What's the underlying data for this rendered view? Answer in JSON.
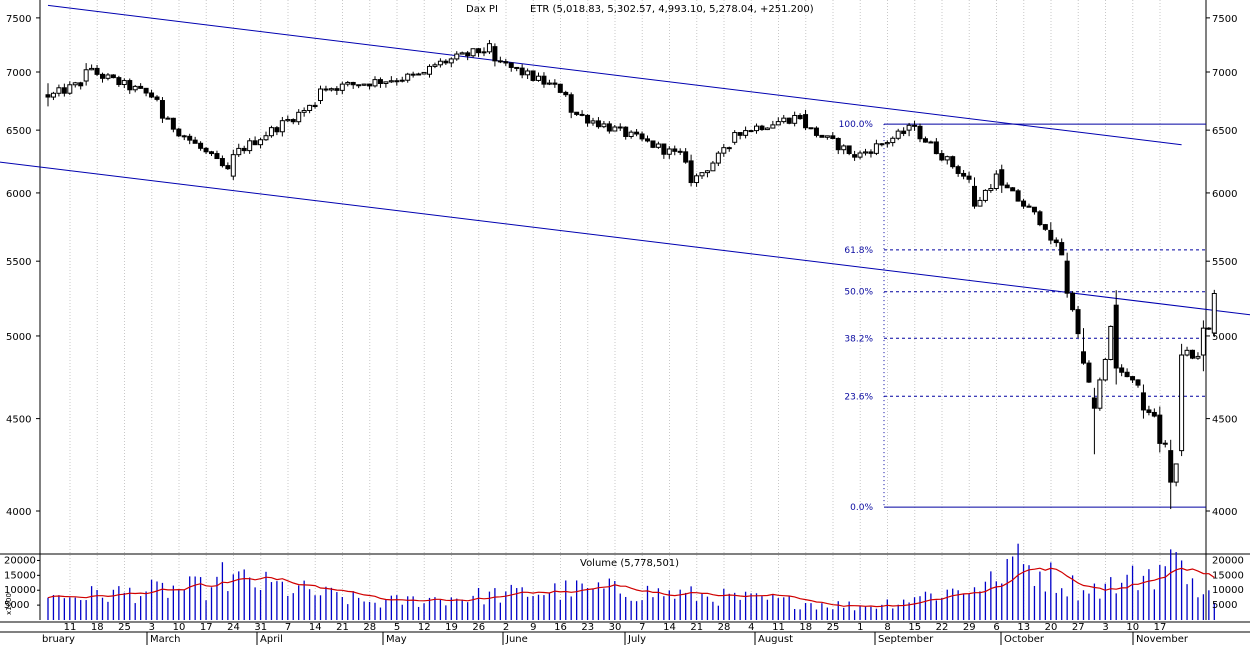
{
  "chart_data": [
    {
      "type": "candlestick",
      "symbol": "Dax PI",
      "header": "ETR (5,018.83, 5,302.57, 4,993.10, 5,278.04, +251.200)",
      "yticks": [
        4000,
        4500,
        5000,
        5500,
        6000,
        6500,
        7000,
        7500
      ],
      "ylim": [
        3650,
        7620
      ],
      "y_scale": "log",
      "date_ticks": [
        "11",
        "18",
        "25",
        "3",
        "10",
        "17",
        "24",
        "31",
        "7",
        "14",
        "21",
        "28",
        "5",
        "12",
        "19",
        "26",
        "2",
        "9",
        "16",
        "23",
        "30",
        "7",
        "14",
        "21",
        "28",
        "4",
        "11",
        "18",
        "25",
        "1",
        "8",
        "15",
        "22",
        "29",
        "6",
        "13",
        "20",
        "27",
        "3",
        "10",
        "17"
      ],
      "months": [
        "bruary",
        "March",
        "April",
        "May",
        "June",
        "July",
        "August",
        "September",
        "October",
        "November"
      ],
      "trendlines": [
        {
          "from": [
            0,
            7620
          ],
          "to": [
            208,
            6380
          ]
        },
        {
          "from": [
            -20,
            6300
          ],
          "to": [
            243,
            5040
          ]
        }
      ],
      "fibonacci": {
        "high": 6550,
        "low": 4020,
        "levels": [
          {
            "label": "100.0%",
            "value": 6550
          },
          {
            "label": "61.8%",
            "value": 5580
          },
          {
            "label": "50.0%",
            "value": 5290
          },
          {
            "label": "38.2%",
            "value": 4985
          },
          {
            "label": "23.6%",
            "value": 4630
          },
          {
            "label": "0.0%",
            "value": 4020
          }
        ]
      },
      "key_ohlc": [
        {
          "day": 0,
          "o": 6800,
          "h": 6900,
          "l": 6700,
          "c": 6780
        },
        {
          "day": 7,
          "o": 6920,
          "h": 7080,
          "l": 6880,
          "c": 7020
        },
        {
          "day": 21,
          "o": 6750,
          "h": 6780,
          "l": 6560,
          "c": 6600
        },
        {
          "day": 34,
          "o": 6130,
          "h": 6340,
          "l": 6100,
          "c": 6300
        },
        {
          "day": 50,
          "o": 6750,
          "h": 6880,
          "l": 6720,
          "c": 6850
        },
        {
          "day": 70,
          "o": 6980,
          "h": 7070,
          "l": 6950,
          "c": 7050
        },
        {
          "day": 82,
          "o": 7230,
          "h": 7260,
          "l": 7050,
          "c": 7100
        },
        {
          "day": 96,
          "o": 6800,
          "h": 6820,
          "l": 6600,
          "c": 6650
        },
        {
          "day": 118,
          "o": 6250,
          "h": 6300,
          "l": 6050,
          "c": 6080
        },
        {
          "day": 126,
          "o": 6400,
          "h": 6500,
          "l": 6380,
          "c": 6480
        },
        {
          "day": 139,
          "o": 6630,
          "h": 6670,
          "l": 6500,
          "c": 6520
        },
        {
          "day": 148,
          "o": 6300,
          "h": 6330,
          "l": 6250,
          "c": 6280
        },
        {
          "day": 158,
          "o": 6500,
          "h": 6560,
          "l": 6450,
          "c": 6540
        },
        {
          "day": 170,
          "o": 6050,
          "h": 6120,
          "l": 5880,
          "c": 5900
        },
        {
          "day": 175,
          "o": 6180,
          "h": 6220,
          "l": 6000,
          "c": 6060
        },
        {
          "day": 184,
          "o": 5720,
          "h": 5780,
          "l": 5620,
          "c": 5650
        },
        {
          "day": 187,
          "o": 5500,
          "h": 5560,
          "l": 5250,
          "c": 5280
        },
        {
          "day": 190,
          "o": 4900,
          "h": 5050,
          "l": 4820,
          "c": 4830
        },
        {
          "day": 192,
          "o": 4620,
          "h": 4680,
          "l": 4300,
          "c": 4560
        },
        {
          "day": 196,
          "o": 5200,
          "h": 5300,
          "l": 4700,
          "c": 4800
        },
        {
          "day": 201,
          "o": 4650,
          "h": 4700,
          "l": 4500,
          "c": 4550
        },
        {
          "day": 204,
          "o": 4520,
          "h": 4570,
          "l": 4310,
          "c": 4360
        },
        {
          "day": 206,
          "o": 4320,
          "h": 4380,
          "l": 4010,
          "c": 4150
        },
        {
          "day": 208,
          "o": 4320,
          "h": 4950,
          "l": 4290,
          "c": 4880
        },
        {
          "day": 212,
          "o": 4880,
          "h": 5100,
          "l": 4780,
          "c": 5050
        },
        {
          "day": 214,
          "o": 5018.83,
          "h": 5302.57,
          "l": 4993.1,
          "c": 5278.04
        }
      ]
    },
    {
      "type": "bar",
      "title": "Volume (5,778,501)",
      "yticks": [
        5000,
        10000,
        15000,
        20000
      ],
      "y_unit": "x1000",
      "ylim": [
        0,
        21500
      ],
      "moving_average": true,
      "key_volume": [
        {
          "day": 0,
          "v": 7500
        },
        {
          "day": 30,
          "v": 11000
        },
        {
          "day": 31,
          "v": 14500
        },
        {
          "day": 60,
          "v": 5800
        },
        {
          "day": 100,
          "v": 10500
        },
        {
          "day": 150,
          "v": 4500
        },
        {
          "day": 160,
          "v": 8000
        },
        {
          "day": 170,
          "v": 11000
        },
        {
          "day": 174,
          "v": 13000
        },
        {
          "day": 176,
          "v": 20500
        },
        {
          "day": 190,
          "v": 10000
        },
        {
          "day": 197,
          "v": 12500
        },
        {
          "day": 208,
          "v": 20000
        },
        {
          "day": 210,
          "v": 14000
        },
        {
          "day": 214,
          "v": 5778.501
        }
      ]
    }
  ]
}
